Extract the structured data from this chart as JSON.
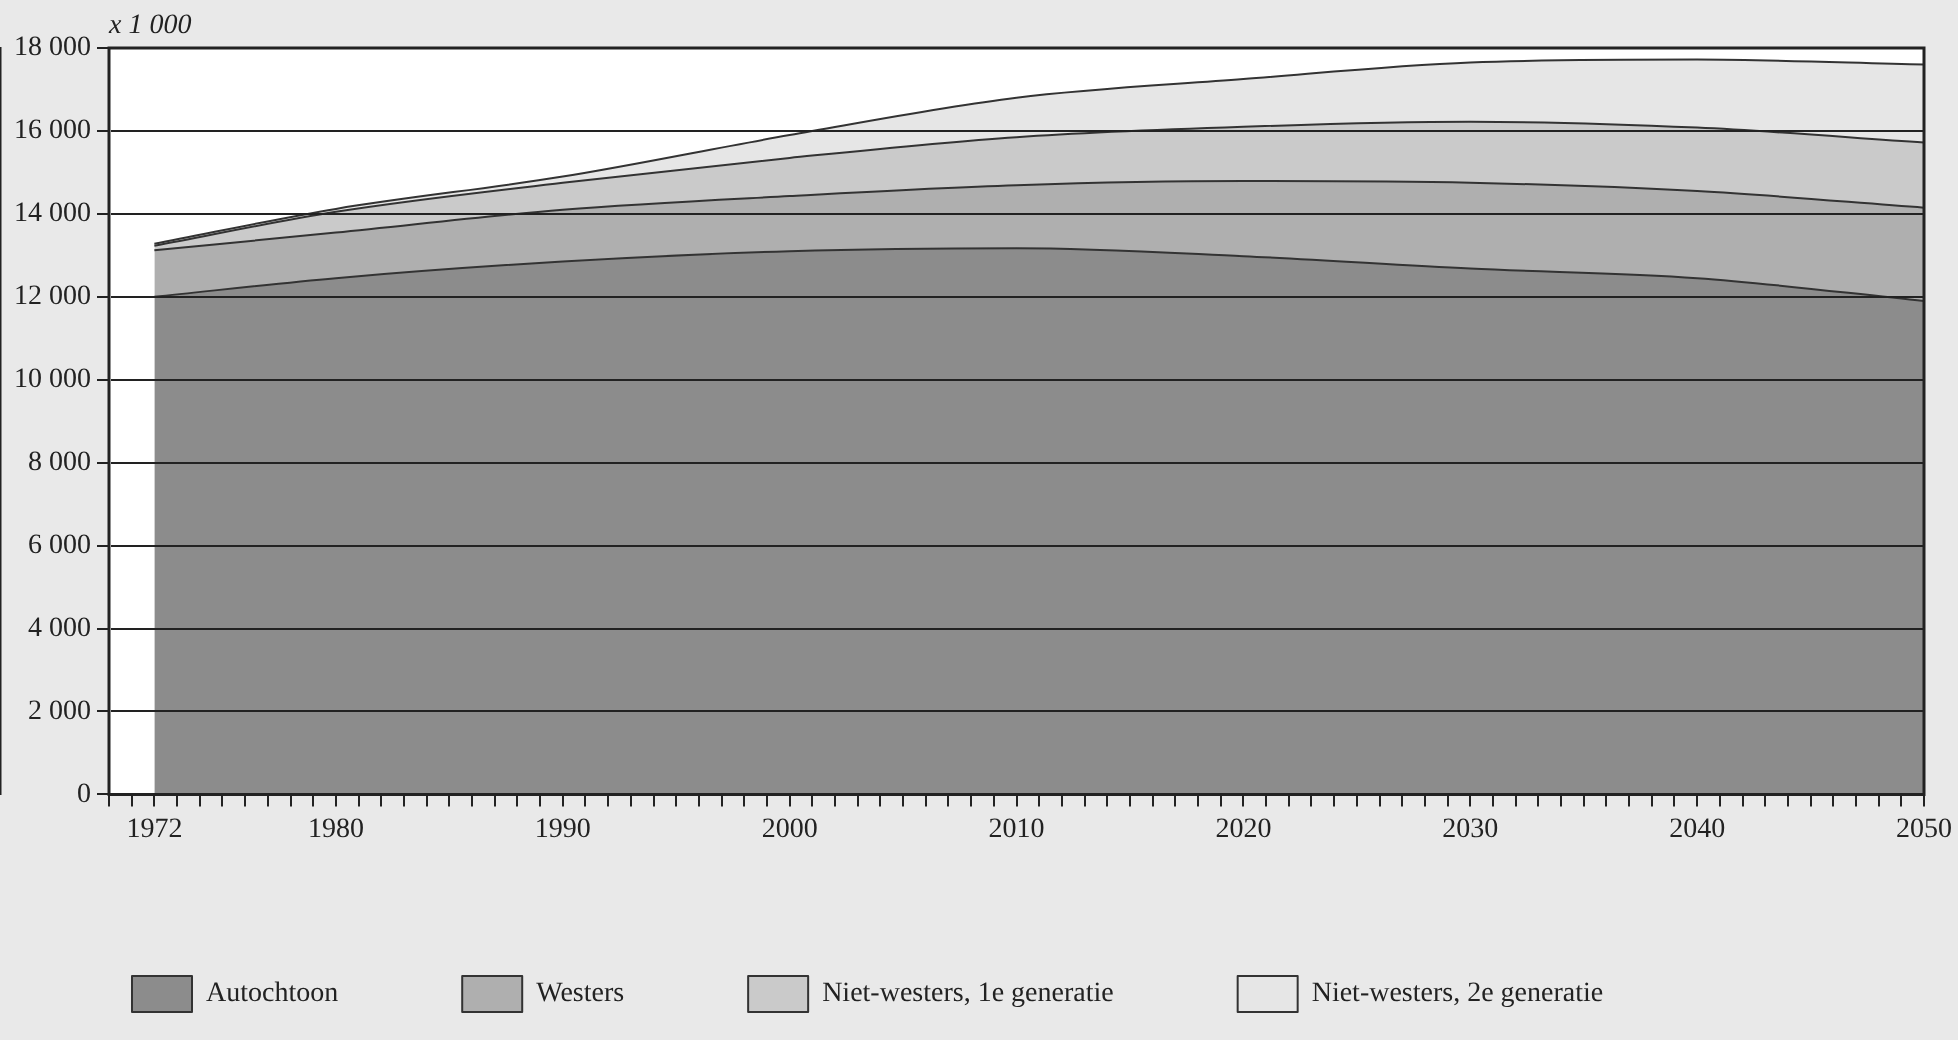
{
  "chart_data": {
    "type": "area",
    "stacked": true,
    "ylabel": "x 1 000",
    "x": [
      1972,
      1980,
      1990,
      2000,
      2010,
      2020,
      2030,
      2040,
      2050
    ],
    "series": [
      {
        "name": "Autochtoon",
        "color": "#8c8c8c",
        "values": [
          12000,
          12450,
          12850,
          13100,
          13170,
          12980,
          12680,
          12450,
          11900
        ]
      },
      {
        "name": "Westers",
        "color": "#afafaf",
        "values": [
          1120,
          1100,
          1250,
          1330,
          1520,
          1810,
          2070,
          2100,
          2250
        ]
      },
      {
        "name": "Niet-westers, 1e generatie",
        "color": "#cacaca",
        "values": [
          110,
          500,
          650,
          920,
          1160,
          1310,
          1470,
          1530,
          1570
        ]
      },
      {
        "name": "Niet-westers, 2e generatie",
        "color": "#e6e6e6",
        "values": [
          50,
          70,
          150,
          550,
          950,
          1150,
          1430,
          1640,
          1880
        ]
      }
    ],
    "xlim": [
      1970,
      2050
    ],
    "xticks": [
      {
        "value": 1970,
        "label": null
      },
      {
        "value": 1971,
        "label": null
      },
      1972,
      {
        "value": 1973,
        "label": null
      },
      {
        "value": 1974,
        "label": null
      },
      {
        "value": 1975,
        "label": null
      },
      {
        "value": 1976,
        "label": null
      },
      {
        "value": 1977,
        "label": null
      },
      {
        "value": 1978,
        "label": null
      },
      {
        "value": 1979,
        "label": null
      },
      1980,
      {
        "value": 1981,
        "label": null
      },
      {
        "value": 1982,
        "label": null
      },
      {
        "value": 1983,
        "label": null
      },
      {
        "value": 1984,
        "label": null
      },
      {
        "value": 1985,
        "label": null
      },
      {
        "value": 1986,
        "label": null
      },
      {
        "value": 1987,
        "label": null
      },
      {
        "value": 1988,
        "label": null
      },
      {
        "value": 1989,
        "label": null
      },
      1990,
      {
        "value": 1991,
        "label": null
      },
      {
        "value": 1992,
        "label": null
      },
      {
        "value": 1993,
        "label": null
      },
      {
        "value": 1994,
        "label": null
      },
      {
        "value": 1995,
        "label": null
      },
      {
        "value": 1996,
        "label": null
      },
      {
        "value": 1997,
        "label": null
      },
      {
        "value": 1998,
        "label": null
      },
      {
        "value": 1999,
        "label": null
      },
      2000,
      {
        "value": 2001,
        "label": null
      },
      {
        "value": 2002,
        "label": null
      },
      {
        "value": 2003,
        "label": null
      },
      {
        "value": 2004,
        "label": null
      },
      {
        "value": 2005,
        "label": null
      },
      {
        "value": 2006,
        "label": null
      },
      {
        "value": 2007,
        "label": null
      },
      {
        "value": 2008,
        "label": null
      },
      {
        "value": 2009,
        "label": null
      },
      2010,
      {
        "value": 2011,
        "label": null
      },
      {
        "value": 2012,
        "label": null
      },
      {
        "value": 2013,
        "label": null
      },
      {
        "value": 2014,
        "label": null
      },
      {
        "value": 2015,
        "label": null
      },
      {
        "value": 2016,
        "label": null
      },
      {
        "value": 2017,
        "label": null
      },
      {
        "value": 2018,
        "label": null
      },
      {
        "value": 2019,
        "label": null
      },
      2020,
      {
        "value": 2021,
        "label": null
      },
      {
        "value": 2022,
        "label": null
      },
      {
        "value": 2023,
        "label": null
      },
      {
        "value": 2024,
        "label": null
      },
      {
        "value": 2025,
        "label": null
      },
      {
        "value": 2026,
        "label": null
      },
      {
        "value": 2027,
        "label": null
      },
      {
        "value": 2028,
        "label": null
      },
      {
        "value": 2029,
        "label": null
      },
      2030,
      {
        "value": 2031,
        "label": null
      },
      {
        "value": 2032,
        "label": null
      },
      {
        "value": 2033,
        "label": null
      },
      {
        "value": 2034,
        "label": null
      },
      {
        "value": 2035,
        "label": null
      },
      {
        "value": 2036,
        "label": null
      },
      {
        "value": 2037,
        "label": null
      },
      {
        "value": 2038,
        "label": null
      },
      {
        "value": 2039,
        "label": null
      },
      2040,
      {
        "value": 2041,
        "label": null
      },
      {
        "value": 2042,
        "label": null
      },
      {
        "value": 2043,
        "label": null
      },
      {
        "value": 2044,
        "label": null
      },
      {
        "value": 2045,
        "label": null
      },
      {
        "value": 2046,
        "label": null
      },
      {
        "value": 2047,
        "label": null
      },
      {
        "value": 2048,
        "label": null
      },
      {
        "value": 2049,
        "label": null
      },
      2050
    ],
    "ylim": [
      0,
      18000
    ],
    "yticks": [
      0,
      {
        "value": 2000,
        "label": "2 000"
      },
      {
        "value": 4000,
        "label": "4 000"
      },
      {
        "value": 6000,
        "label": "6 000"
      },
      {
        "value": 8000,
        "label": "8 000"
      },
      {
        "value": 10000,
        "label": "10 000"
      },
      {
        "value": 12000,
        "label": "12 000"
      },
      {
        "value": 14000,
        "label": "14 000"
      },
      {
        "value": 16000,
        "label": "16 000"
      },
      {
        "value": 18000,
        "label": "18 000"
      }
    ],
    "grid": "y",
    "legend": "bottom",
    "marker": "none",
    "line_style": "solid"
  }
}
